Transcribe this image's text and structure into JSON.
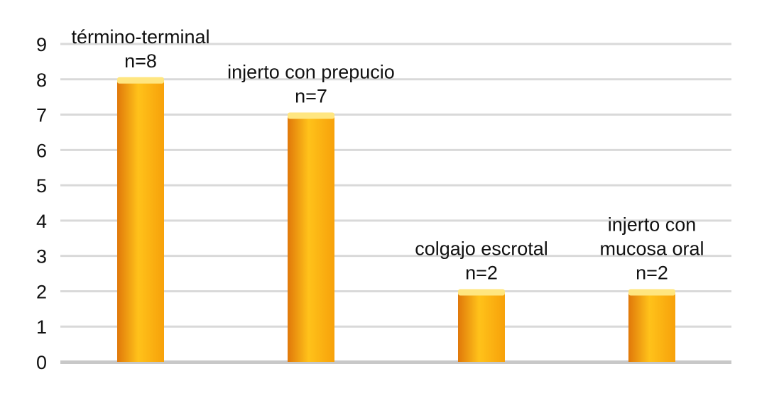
{
  "chart_data": {
    "type": "bar",
    "categories": [
      "término-terminal",
      "injerto con prepucio",
      "colgajo escrotal",
      "injerto con mucosa oral"
    ],
    "values": [
      8,
      7,
      2,
      2
    ],
    "data_labels": [
      [
        "término-terminal",
        "n=8"
      ],
      [
        "injerto con prepucio",
        "n=7"
      ],
      [
        "colgajo escrotal",
        "n=2"
      ],
      [
        "injerto con",
        "mucosa oral",
        "n=2"
      ]
    ],
    "ylim": [
      0,
      9
    ],
    "yticks": [
      0,
      1,
      2,
      3,
      4,
      5,
      6,
      7,
      8,
      9
    ],
    "grid": true,
    "legend": "none",
    "colors": {
      "bar_light": "#FFC21A",
      "bar_mid": "#F7A10A",
      "bar_dark": "#E0780A",
      "bar_top": "#FFE680",
      "grid": "#D9D9D9",
      "baseline": "#C8C8C8"
    }
  }
}
